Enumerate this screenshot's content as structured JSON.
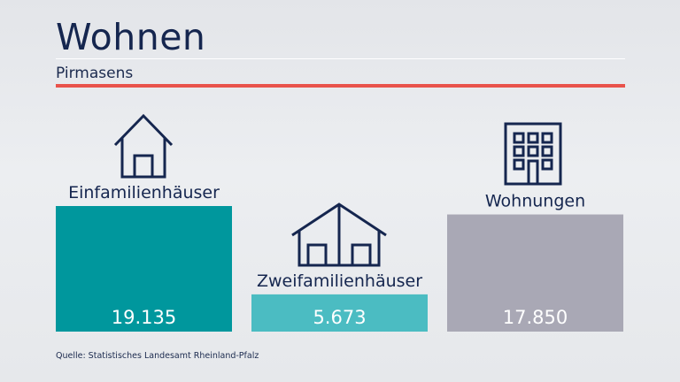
{
  "header": {
    "title": "Wohnen",
    "subtitle": "Pirmasens"
  },
  "footer": {
    "source": "Quelle: Statistisches Landesamt Rheinland-Pfalz"
  },
  "colors": {
    "title": "#15264f",
    "accent_line": "#e9534b",
    "bar_einfamilien": "#00979d",
    "bar_zweifamilien": "#4bbcc2",
    "bar_wohnungen": "#a9a8b5"
  },
  "icons": [
    "house-icon",
    "double-house-icon",
    "apartment-building-icon"
  ],
  "chart_data": {
    "type": "bar",
    "categories": [
      "Einfamilienhäuser",
      "Zweifamilienhäuser",
      "Wohnungen"
    ],
    "values": [
      19135,
      5673,
      17850
    ],
    "value_labels": [
      "19.135",
      "5.673",
      "17.850"
    ],
    "bar_colors": [
      "#00979d",
      "#4bbcc2",
      "#a9a8b5"
    ],
    "ylim": [
      0,
      19135
    ],
    "grid": false,
    "legend": "none"
  }
}
